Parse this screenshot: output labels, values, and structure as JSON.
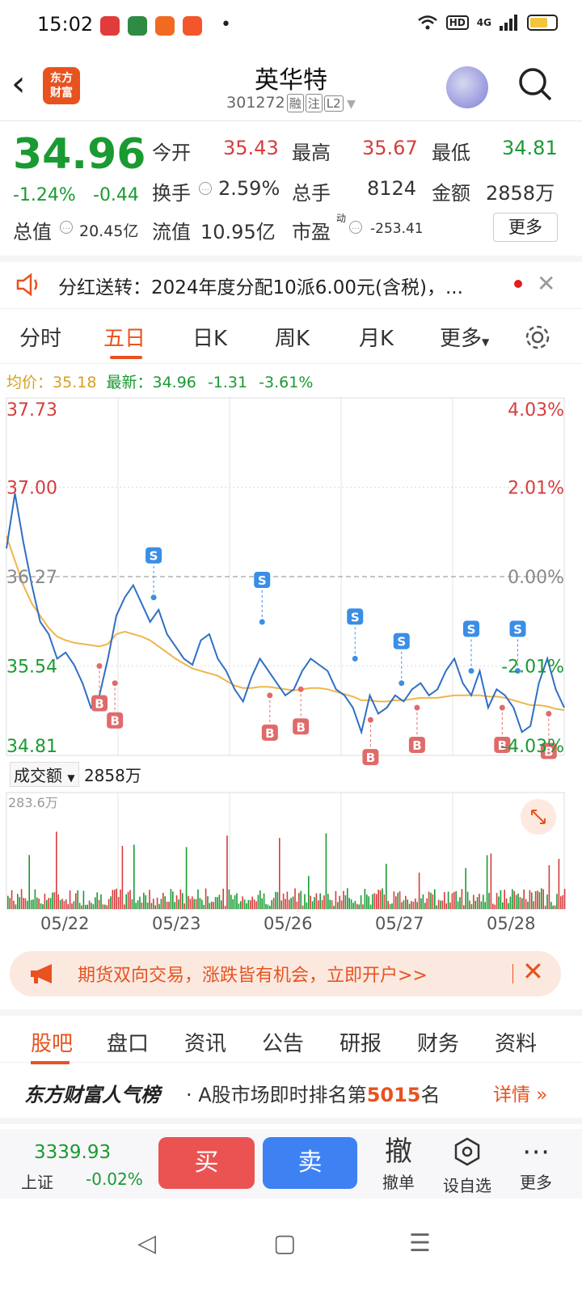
{
  "status": {
    "time": "15:02",
    "network": "4G",
    "hd": "HD"
  },
  "header": {
    "logo_line1": "东方",
    "logo_line2": "财富",
    "stock_name": "英华特",
    "stock_code": "301272",
    "tag1": "融",
    "tag2": "注",
    "tag3": "L2"
  },
  "quote": {
    "price": "34.96",
    "pct": "-1.24%",
    "chg": "-0.44",
    "open_label": "今开",
    "open": "35.43",
    "high_label": "最高",
    "high": "35.67",
    "low_label": "最低",
    "low": "34.81",
    "turnover_label": "换手",
    "turnover": "2.59%",
    "volume_label": "总手",
    "volume": "8124",
    "amount_label": "金额",
    "amount": "2858万",
    "mktcap_label": "总值",
    "mktcap": "20.45亿",
    "float_label": "流值",
    "float": "10.95亿",
    "pe_label": "市盈",
    "pe_sup": "动",
    "pe": "-253.41",
    "more": "更多"
  },
  "notice": {
    "text": "分红送转：2024年度分配10派6.00元(含税)，..."
  },
  "tabs": {
    "t1": "分时",
    "t2": "五日",
    "t3": "日K",
    "t4": "周K",
    "t5": "月K",
    "more": "更多"
  },
  "legend": {
    "avg_label": "均价：",
    "avg": "35.18",
    "latest_label": "最新：",
    "latest": "34.96",
    "chg": "-1.31",
    "pct": "-3.61%"
  },
  "chart_data": {
    "type": "line",
    "y_left_ticks": [
      "37.73",
      "37.00",
      "36.27",
      "35.54",
      "34.81"
    ],
    "y_right_ticks": [
      "4.03%",
      "2.01%",
      "0.00%",
      "-2.01%",
      "-4.03%"
    ],
    "ylim": [
      34.81,
      37.73
    ],
    "prev_close": 36.27,
    "x_labels": [
      "05/22",
      "05/23",
      "05/26",
      "05/27",
      "05/28"
    ],
    "series": [
      {
        "name": "最新",
        "values": [
          36.5,
          36.95,
          36.55,
          36.2,
          35.9,
          35.8,
          35.6,
          35.65,
          35.55,
          35.4,
          35.2,
          35.3,
          35.6,
          35.95,
          36.1,
          36.2,
          36.05,
          35.9,
          36.0,
          35.8,
          35.7,
          35.6,
          35.55,
          35.75,
          35.8,
          35.6,
          35.5,
          35.35,
          35.25,
          35.45,
          35.6,
          35.5,
          35.4,
          35.3,
          35.35,
          35.5,
          35.6,
          35.55,
          35.5,
          35.35,
          35.3,
          35.2,
          35.0,
          35.3,
          35.15,
          35.2,
          35.3,
          35.25,
          35.35,
          35.4,
          35.3,
          35.35,
          35.5,
          35.6,
          35.4,
          35.3,
          35.5,
          35.2,
          35.35,
          35.3,
          35.2,
          35.0,
          35.05,
          35.4,
          35.6,
          35.35,
          35.2
        ]
      },
      {
        "name": "均价",
        "values": [
          36.6,
          36.4,
          36.2,
          36.05,
          35.95,
          35.85,
          35.78,
          35.75,
          35.73,
          35.72,
          35.71,
          35.7,
          35.72,
          35.8,
          35.82,
          35.8,
          35.78,
          35.75,
          35.7,
          35.65,
          35.6,
          35.56,
          35.52,
          35.5,
          35.48,
          35.46,
          35.42,
          35.38,
          35.36,
          35.36,
          35.37,
          35.37,
          35.36,
          35.35,
          35.34,
          35.35,
          35.36,
          35.36,
          35.35,
          35.33,
          35.31,
          35.29,
          35.26,
          35.26,
          35.25,
          35.25,
          35.26,
          35.26,
          35.27,
          35.28,
          35.28,
          35.28,
          35.29,
          35.3,
          35.3,
          35.3,
          35.3,
          35.29,
          35.29,
          35.28,
          35.26,
          35.24,
          35.22,
          35.22,
          35.21,
          35.19,
          35.18
        ]
      }
    ],
    "markers": [
      {
        "label": "B",
        "x_index": 12,
        "value": 35.54
      },
      {
        "label": "B",
        "x_index": 14,
        "value": 35.4
      },
      {
        "label": "S",
        "x_index": 19,
        "value": 36.1
      },
      {
        "label": "S",
        "x_index": 33,
        "value": 35.9
      },
      {
        "label": "B",
        "x_index": 34,
        "value": 35.3
      },
      {
        "label": "B",
        "x_index": 38,
        "value": 35.35
      },
      {
        "label": "S",
        "x_index": 45,
        "value": 35.6
      },
      {
        "label": "B",
        "x_index": 47,
        "value": 35.1
      },
      {
        "label": "S",
        "x_index": 51,
        "value": 35.4
      },
      {
        "label": "B",
        "x_index": 53,
        "value": 35.2
      },
      {
        "label": "S",
        "x_index": 60,
        "value": 35.5
      },
      {
        "label": "B",
        "x_index": 64,
        "value": 35.2
      },
      {
        "label": "S",
        "x_index": 66,
        "value": 35.5
      },
      {
        "label": "B",
        "x_index": 70,
        "value": 35.15
      }
    ],
    "marker_colors": {
      "B": "#e06a6a",
      "S": "#3a8ee6"
    },
    "line_color": "#2f6fc4",
    "avg_color": "#f0b54a"
  },
  "volume": {
    "label": "成交额",
    "value": "2858万",
    "max_label": "283.6万"
  },
  "ad": {
    "text": "期货双向交易，涨跌皆有机会，立即开户>>"
  },
  "bottom_tabs": {
    "b1": "股吧",
    "b2": "盘口",
    "b3": "资讯",
    "b4": "公告",
    "b5": "研报",
    "b6": "财务",
    "b7": "资料"
  },
  "rank": {
    "brand": "东方财富人气榜",
    "prefix": "· A股市场即时排名第",
    "num": "5015",
    "suffix": "名",
    "more": "详情"
  },
  "tradebar": {
    "index_value": "3339.93",
    "index_name": "上证",
    "index_chg": "-0.02%",
    "buy": "买",
    "sell": "卖",
    "cancel_icon": "撤",
    "cancel": "撤单",
    "watch": "设自选",
    "more": "更多"
  }
}
